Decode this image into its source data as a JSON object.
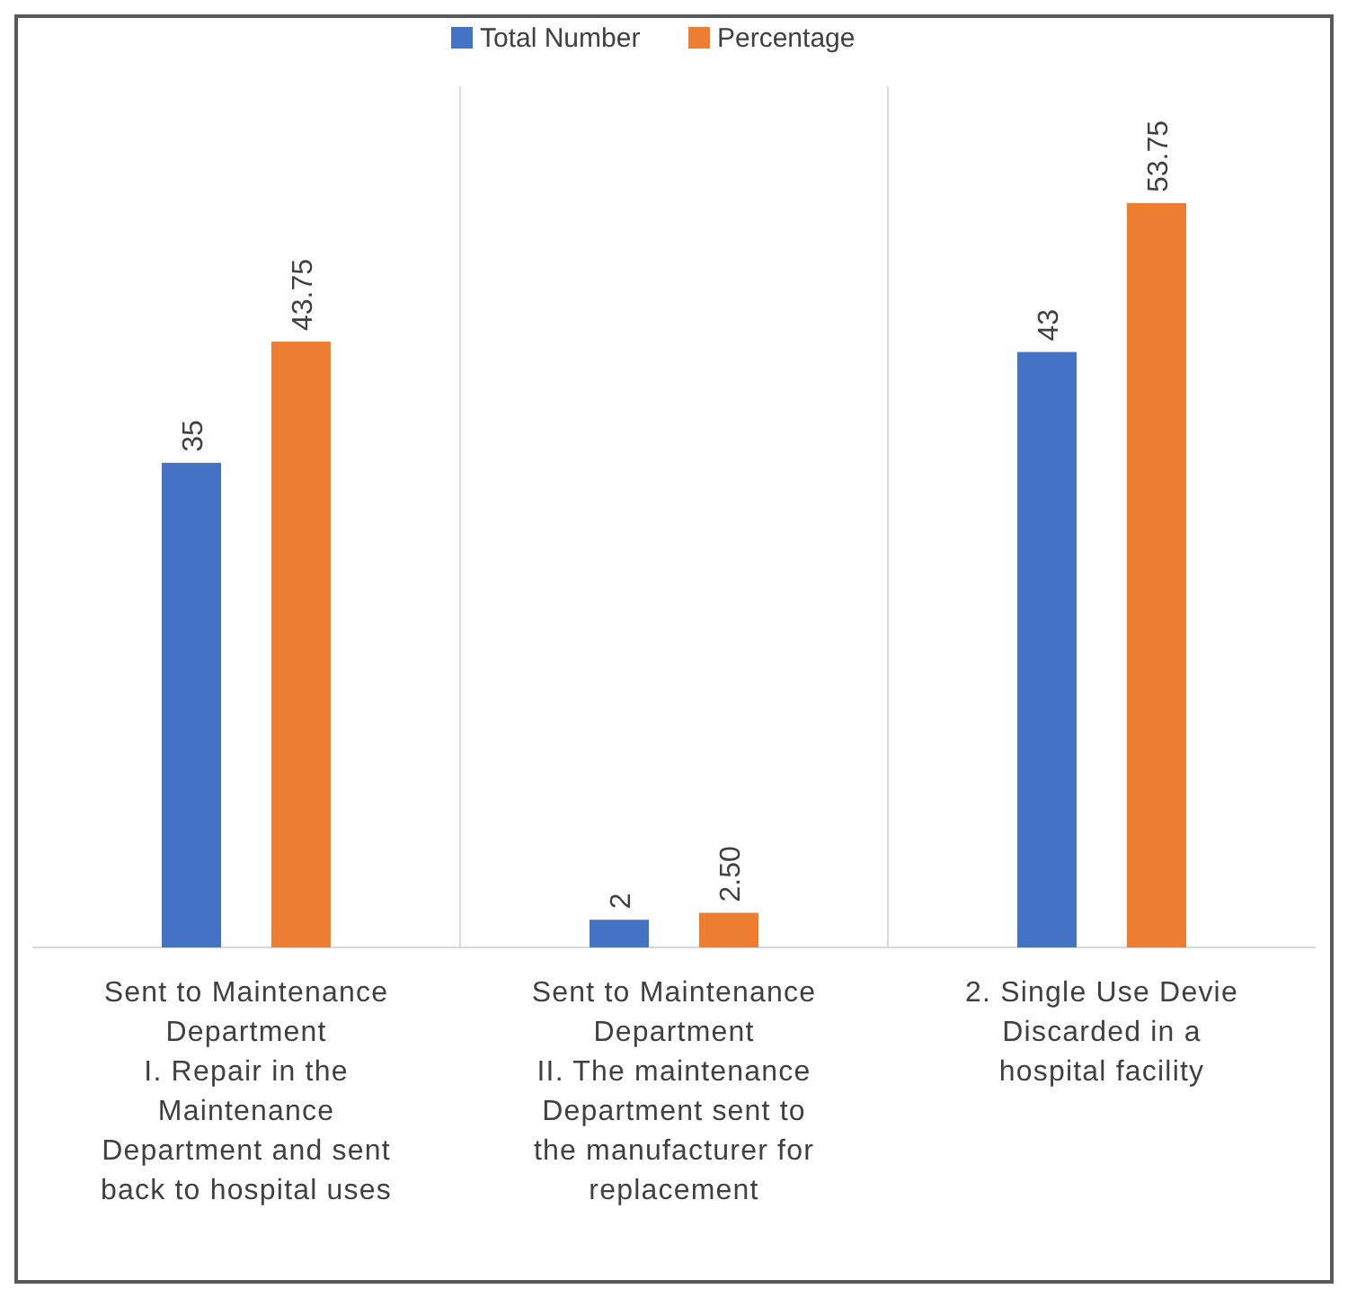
{
  "chart_data": {
    "type": "bar",
    "categories": [
      "Sent to Maintenance\nDepartment\nI. Repair in the\nMaintenance\nDepartment and sent\nback to hospital uses",
      "Sent to Maintenance\nDepartment\nII. The maintenance\nDepartment sent to\nthe manufacturer for\nreplacement",
      "2. Single Use Devie\nDiscarded in a\nhospital facility"
    ],
    "series": [
      {
        "name": "Total Number",
        "color": "#4472c4",
        "values": [
          35,
          2,
          43
        ],
        "value_labels": [
          "35",
          "2",
          "43"
        ]
      },
      {
        "name": "Percentage",
        "color": "#ed7d31",
        "values": [
          43.75,
          2.5,
          53.75
        ],
        "value_labels": [
          "43.75",
          "2.50",
          "53.75"
        ]
      }
    ],
    "legend": "top"
  }
}
